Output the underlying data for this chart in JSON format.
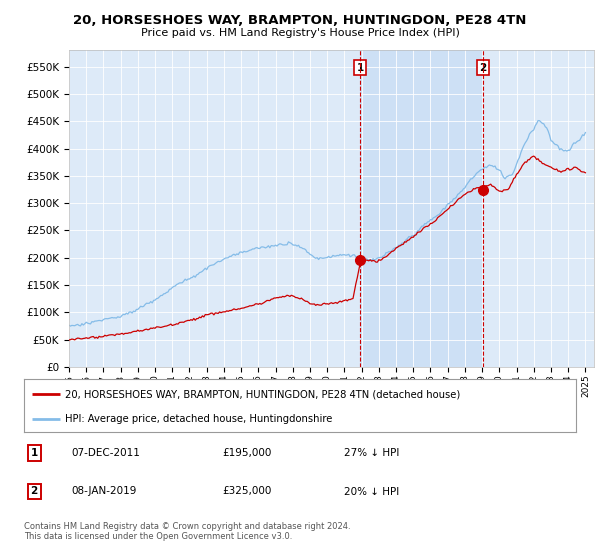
{
  "title": "20, HORSESHOES WAY, BRAMPTON, HUNTINGDON, PE28 4TN",
  "subtitle": "Price paid vs. HM Land Registry's House Price Index (HPI)",
  "ylabel_ticks": [
    "£0",
    "£50K",
    "£100K",
    "£150K",
    "£200K",
    "£250K",
    "£300K",
    "£350K",
    "£400K",
    "£450K",
    "£500K",
    "£550K"
  ],
  "ytick_values": [
    0,
    50000,
    100000,
    150000,
    200000,
    250000,
    300000,
    350000,
    400000,
    450000,
    500000,
    550000
  ],
  "hpi_color": "#85bce8",
  "price_color": "#cc0000",
  "plot_bg": "#ddeaf8",
  "highlight_bg": "#ccdff5",
  "legend_red_label": "20, HORSESHOES WAY, BRAMPTON, HUNTINGDON, PE28 4TN (detached house)",
  "legend_blue_label": "HPI: Average price, detached house, Huntingdonshire",
  "annotation1_label": "1",
  "annotation1_date": "07-DEC-2011",
  "annotation1_price": "£195,000",
  "annotation1_hpi": "27% ↓ HPI",
  "annotation1_year": 2011.92,
  "annotation1_value": 195000,
  "annotation2_label": "2",
  "annotation2_date": "08-JAN-2019",
  "annotation2_price": "£325,000",
  "annotation2_hpi": "20% ↓ HPI",
  "annotation2_year": 2019.04,
  "annotation2_value": 325000,
  "footer": "Contains HM Land Registry data © Crown copyright and database right 2024.\nThis data is licensed under the Open Government Licence v3.0.",
  "xmin": 1995.0,
  "xmax": 2025.5,
  "ymin": 0,
  "ymax": 580000
}
